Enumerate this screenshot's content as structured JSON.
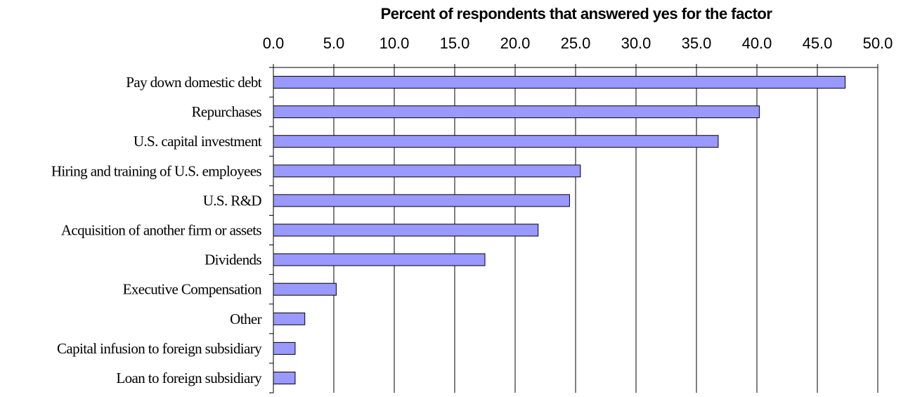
{
  "chart_data": {
    "type": "bar",
    "orientation": "horizontal",
    "title": "Percent of respondents that answered yes for the factor",
    "xlabel": "",
    "ylabel": "",
    "x_ticks": [
      "0.0",
      "5.0",
      "10.0",
      "15.0",
      "20.0",
      "25.0",
      "30.0",
      "35.0",
      "40.0",
      "45.0",
      "50.0"
    ],
    "xlim": [
      0,
      50
    ],
    "x_axis_position": "top",
    "grid": true,
    "legend": "none",
    "bar_color": "#9999ff",
    "categories": [
      "Pay down domestic debt",
      "Repurchases",
      "U.S. capital investment",
      "Hiring and training of U.S. employees",
      "U.S. R&D",
      "Acquisition of another firm or assets",
      "Dividends",
      "Executive Compensation",
      "Other",
      "Capital infusion to foreign subsidiary",
      "Loan to foreign subsidiary"
    ],
    "values": [
      47.3,
      40.2,
      36.8,
      25.4,
      24.5,
      21.9,
      17.5,
      5.2,
      2.6,
      1.8,
      1.8
    ]
  }
}
